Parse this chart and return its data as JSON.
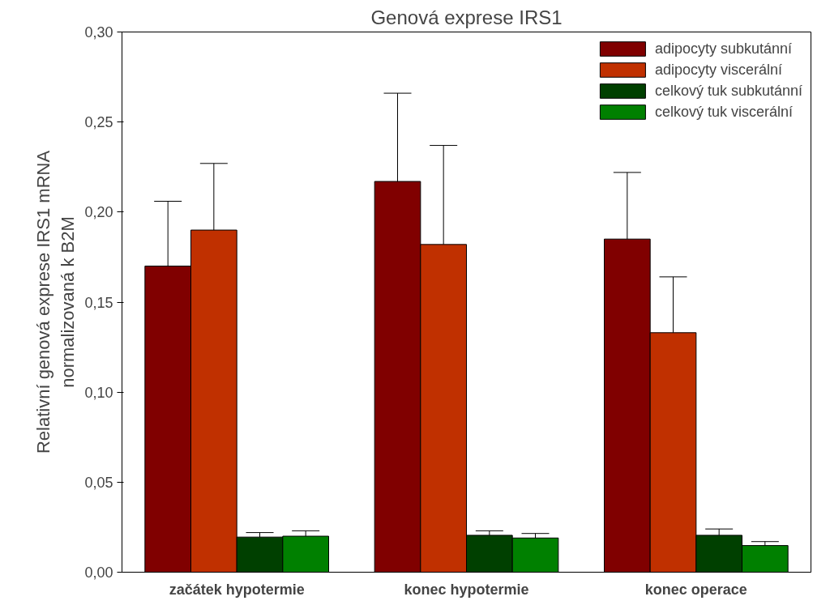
{
  "chart_data": {
    "type": "bar",
    "title": "Genová exprese IRS1",
    "ylabel": "Relativní genová exprese IRS1 mRNA\nnormalizovaná k B2M",
    "categories": [
      "začátek hypotermie",
      "konec hypotermie",
      "konec operace"
    ],
    "series": [
      {
        "name": "adipocyty subkutánní",
        "color": "#800000",
        "values": [
          0.17,
          0.217,
          0.185
        ],
        "errors": [
          [
            0.17,
            0.206
          ],
          [
            0.217,
            0.266
          ],
          [
            0.185,
            0.222
          ]
        ]
      },
      {
        "name": "adipocyty viscerální",
        "color": "#c03000",
        "values": [
          0.19,
          0.182,
          0.133
        ],
        "errors": [
          [
            0.19,
            0.227
          ],
          [
            0.182,
            0.237
          ],
          [
            0.133,
            0.164
          ]
        ]
      },
      {
        "name": "celkový tuk subkutánní",
        "color": "#004000",
        "values": [
          0.0195,
          0.0205,
          0.0205
        ],
        "errors": [
          [
            0.0195,
            0.022
          ],
          [
            0.0205,
            0.023
          ],
          [
            0.0205,
            0.024
          ]
        ]
      },
      {
        "name": "celkový tuk viscerální",
        "color": "#008000",
        "values": [
          0.02,
          0.019,
          0.0148
        ],
        "errors": [
          [
            0.02,
            0.023
          ],
          [
            0.019,
            0.0215
          ],
          [
            0.0148,
            0.017
          ]
        ]
      }
    ],
    "ylim": [
      0,
      0.3
    ],
    "yticks": [
      {
        "value": 0,
        "label": "0,00"
      },
      {
        "value": 0.05,
        "label": "0,05"
      },
      {
        "value": 0.1,
        "label": "0,10"
      },
      {
        "value": 0.15,
        "label": "0,15"
      },
      {
        "value": 0.2,
        "label": "0,20"
      },
      {
        "value": 0.25,
        "label": "0,25"
      },
      {
        "value": 0.3,
        "label": "0,30"
      }
    ],
    "grid": false,
    "legend": "top right"
  }
}
